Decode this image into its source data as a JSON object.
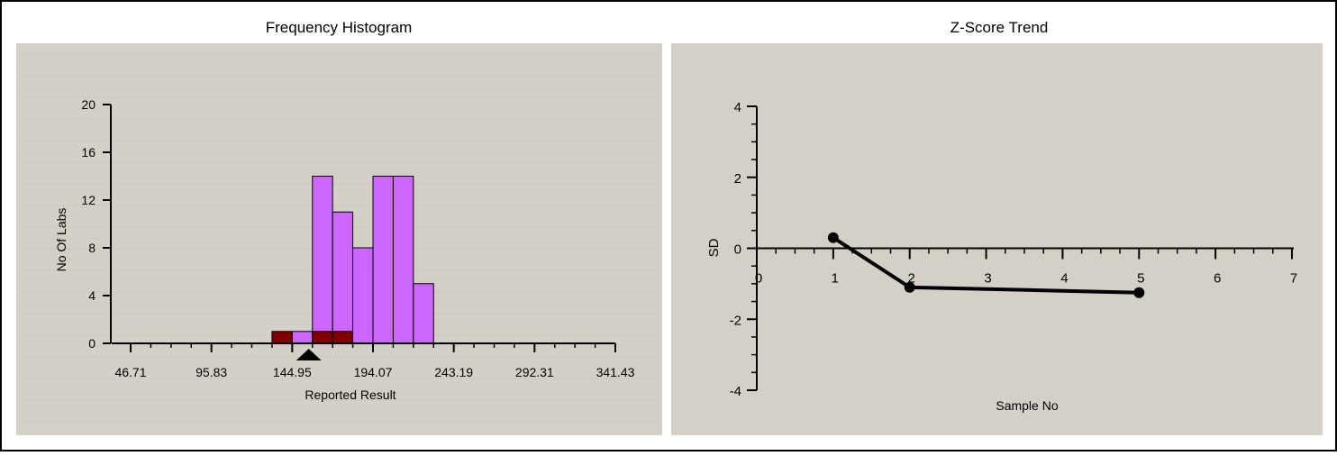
{
  "colors": {
    "panel_bg": "#d4d0c8",
    "bar_fill": "#cc66ff",
    "bar_highlight": "#800000",
    "marker": "#000000",
    "line": "#000000",
    "border": "#000000"
  },
  "chart_data": [
    {
      "type": "bar",
      "title": "Frequency Histogram",
      "xlabel": "Reported Result",
      "ylabel": "No Of Labs",
      "x_tick_labels": [
        "46.71",
        "95.83",
        "144.95",
        "194.07",
        "243.19",
        "292.31",
        "341.43"
      ],
      "x_tick_values": [
        46.71,
        95.83,
        144.95,
        194.07,
        243.19,
        292.31,
        341.43
      ],
      "xlim": [
        46.71,
        341.43
      ],
      "ylim": [
        0,
        20
      ],
      "y_ticks": [
        0,
        4,
        8,
        12,
        16,
        20
      ],
      "bin_width": 12.28,
      "bins": [
        {
          "start": 132.67,
          "value": 1,
          "highlight": true
        },
        {
          "start": 144.95,
          "value": 1,
          "highlight": false
        },
        {
          "start": 157.23,
          "value": 14,
          "highlight": false,
          "highlight_count": 1
        },
        {
          "start": 169.51,
          "value": 11,
          "highlight": false,
          "highlight_count": 1
        },
        {
          "start": 181.79,
          "value": 8,
          "highlight": false
        },
        {
          "start": 194.07,
          "value": 14,
          "highlight": false
        },
        {
          "start": 206.35,
          "value": 14,
          "highlight": false
        },
        {
          "start": 218.63,
          "value": 5,
          "highlight": false
        }
      ],
      "marker_x": 155
    },
    {
      "type": "line",
      "title": "Z-Score Trend",
      "xlabel": "Sample No",
      "ylabel": "SD",
      "x_ticks": [
        0,
        1,
        2,
        3,
        4,
        5,
        6,
        7
      ],
      "y_ticks": [
        -4,
        -2,
        0,
        2,
        4
      ],
      "xlim": [
        0,
        7
      ],
      "ylim": [
        -4,
        4
      ],
      "points": [
        {
          "x": 1,
          "y": 0.3
        },
        {
          "x": 2,
          "y": -1.1
        },
        {
          "x": 3,
          "y": -1.15
        },
        {
          "x": 4,
          "y": -1.2
        },
        {
          "x": 5,
          "y": -1.25
        }
      ],
      "marked_points": [
        1,
        2,
        5
      ]
    }
  ]
}
